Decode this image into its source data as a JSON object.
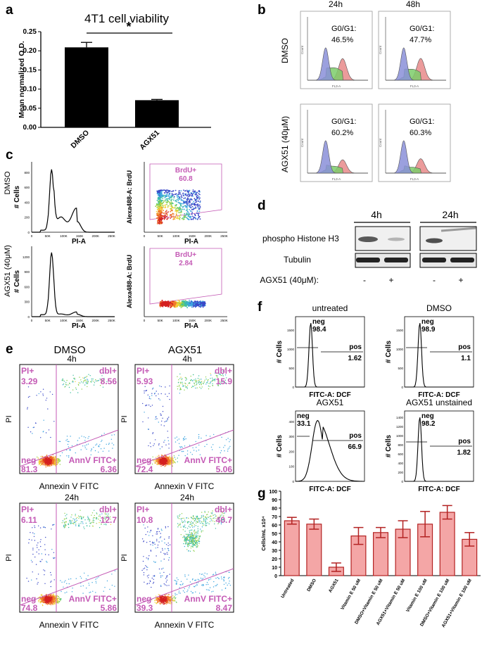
{
  "panels": {
    "a": "a",
    "b": "b",
    "c": "c",
    "d": "d",
    "e": "e",
    "f": "f",
    "g": "g"
  },
  "panel_a": {
    "chart_data": {
      "type": "bar",
      "title": "4T1 cell viability",
      "ylabel": "Mean normalized O.D.",
      "categories": [
        "DMSO",
        "AGX51"
      ],
      "values": [
        0.209,
        0.071
      ],
      "errors": [
        0.013,
        0.002
      ],
      "ylim": [
        0,
        0.25
      ],
      "yticks": [
        "0.00",
        "0.05",
        "0.10",
        "0.15",
        "0.20",
        "0.25"
      ],
      "significance": "*"
    }
  },
  "panel_b": {
    "columns": [
      "24h",
      "48h"
    ],
    "rows": [
      "DMSO",
      "AGX51 (40μM)"
    ],
    "values": [
      [
        "G0/G1:",
        "46.5%"
      ],
      [
        "G0/G1:",
        "47.7%"
      ],
      [
        "G0/G1:",
        "60.2%"
      ],
      [
        "G0/G1:",
        "60.3%"
      ]
    ],
    "ylabel": "Count",
    "xlabel": "FL3-A",
    "colors": {
      "g1": "#8a8fd8",
      "s": "#7dcc6a",
      "g2": "#e88a8a"
    }
  },
  "panel_c": {
    "rows": [
      "DMSO",
      "AGX51 (40μM)"
    ],
    "hist_ylabel": "# Cells",
    "hist_xlabel": "PI-A",
    "dot_ylabel": "Alexa488-A: BrdU",
    "dot_xlabel": "PI-A",
    "xticks": [
      "0",
      "50K",
      "100K",
      "150K",
      "200K",
      "250K"
    ],
    "yticks_top": [
      "0",
      "200",
      "400",
      "600",
      "800"
    ],
    "yticks_bottom": [
      "0",
      "300",
      "600",
      "900",
      "1200"
    ],
    "gates": [
      [
        "BrdU+",
        "60.8"
      ],
      [
        "BrdU+",
        "2.84"
      ]
    ]
  },
  "panel_d": {
    "columns": [
      "4h",
      "24h"
    ],
    "rows": [
      "phospho Histone H3",
      "Tubulin"
    ],
    "treatment_label": "AGX51 (40μM):",
    "signs": [
      "-",
      "+",
      "-",
      "+"
    ]
  },
  "panel_e": {
    "columns": [
      "DMSO",
      "AGX51"
    ],
    "xlabel": "Annexin V FITC",
    "ylabel": "PI",
    "plots": [
      {
        "time": "4h",
        "pi": [
          "PI+",
          "3.29"
        ],
        "dbl": [
          "dbl+",
          "8.56"
        ],
        "neg": [
          "neg",
          "81.3"
        ],
        "annv": [
          "AnnV FITC+",
          "6.36"
        ]
      },
      {
        "time": "4h",
        "pi": [
          "PI+",
          "5.93"
        ],
        "dbl": [
          "dbl+",
          "15.9"
        ],
        "neg": [
          "neg",
          "72.4"
        ],
        "annv": [
          "AnnV FITC+",
          "5.06"
        ]
      },
      {
        "time": "24h",
        "pi": [
          "PI+",
          "6.11"
        ],
        "dbl": [
          "dbl+",
          "12.7"
        ],
        "neg": [
          "neg",
          "74.8"
        ],
        "annv": [
          "AnnV FITC+",
          "5.86"
        ]
      },
      {
        "time": "24h",
        "pi": [
          "PI+",
          "10.8"
        ],
        "dbl": [
          "dbl+",
          "40.7"
        ],
        "neg": [
          "neg",
          "39.3"
        ],
        "annv": [
          "AnnV FITC+",
          "8.47"
        ]
      }
    ]
  },
  "panel_f": {
    "xlabel": "FITC-A: DCF",
    "ylabel": "# Cells",
    "plots": [
      {
        "title": "untreated",
        "neg": [
          "neg",
          "98.4"
        ],
        "pos": [
          "pos",
          "1.62"
        ],
        "yticks": [
          "0",
          "500",
          "1000",
          "1500"
        ]
      },
      {
        "title": "DMSO",
        "neg": [
          "neg",
          "98.9"
        ],
        "pos": [
          "pos",
          "1.1"
        ],
        "yticks": [
          "0",
          "500",
          "1000",
          "1500"
        ]
      },
      {
        "title": "AGX51",
        "neg": [
          "neg",
          "33.1"
        ],
        "pos": [
          "pos",
          "66.9"
        ],
        "yticks": [
          "0",
          "100",
          "200",
          "300",
          "400"
        ]
      },
      {
        "title": "AGX51 unstained",
        "neg": [
          "neg",
          "98.2"
        ],
        "pos": [
          "pos",
          "1.82"
        ],
        "yticks": [
          "0",
          "200",
          "400",
          "600",
          "800",
          "1000",
          "1200",
          "1400"
        ]
      }
    ]
  },
  "panel_g": {
    "chart_data": {
      "type": "bar",
      "ylabel": "Cells/mL x10⁴",
      "ylim": [
        0,
        100
      ],
      "yticks": [
        "0",
        "10",
        "20",
        "30",
        "40",
        "50",
        "60",
        "70",
        "80",
        "90",
        "100"
      ],
      "categories": [
        "Untreated",
        "DMSO",
        "AGX51",
        "Vitamin E 50 uM",
        "DMSO+Vitamin E 50 uM",
        "AGX51+Vitamin E 50 uM",
        "Vitamin E 100 uM",
        "DMSO+Vitamin E 100 uM",
        "AGX51+Vitamin E 100 uM"
      ],
      "values": [
        65,
        61,
        10,
        47,
        51,
        55,
        61,
        75,
        43
      ],
      "errors": [
        4,
        6,
        5,
        10,
        6,
        10,
        15,
        8,
        8
      ],
      "colors": {
        "fill": "#f4a6a6",
        "stroke": "#b32222"
      }
    }
  }
}
